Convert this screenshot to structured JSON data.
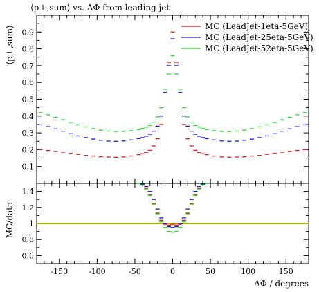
{
  "chart_data": [
    {
      "type": "scatter",
      "title": "⟨p⊥,sum⟩ vs. ΔΦ from leading jet",
      "xlabel": "",
      "ylabel": "⟨p⊥,sum⟩",
      "xlim": [
        -180,
        180
      ],
      "ylim": [
        0,
        1.0
      ],
      "yticks": [
        "0.1",
        "0.2",
        "0.3",
        "0.4",
        "0.5",
        "0.6",
        "0.7",
        "0.8",
        "0.9"
      ],
      "legend_position": "top-right",
      "x": [
        -175,
        -165,
        -155,
        -145,
        -135,
        -125,
        -115,
        -105,
        -95,
        -85,
        -75,
        -65,
        -55,
        -45,
        -40,
        -35,
        -30,
        -25,
        -20,
        -15,
        -10,
        -5,
        0,
        5,
        10,
        15,
        20,
        25,
        30,
        35,
        40,
        45,
        55,
        65,
        75,
        85,
        95,
        105,
        115,
        125,
        135,
        145,
        155,
        165,
        175
      ],
      "series": [
        {
          "name": "MC (LeadJet-1eta-5GeV)",
          "color": "#e41a1c",
          "values": [
            0.2,
            0.195,
            0.19,
            0.185,
            0.178,
            0.172,
            0.166,
            0.162,
            0.158,
            0.156,
            0.155,
            0.157,
            0.162,
            0.17,
            0.176,
            0.184,
            0.196,
            0.222,
            0.265,
            0.35,
            0.54,
            0.72,
            0.9,
            0.72,
            0.54,
            0.35,
            0.265,
            0.222,
            0.196,
            0.184,
            0.176,
            0.17,
            0.162,
            0.157,
            0.155,
            0.156,
            0.158,
            0.162,
            0.166,
            0.172,
            0.178,
            0.185,
            0.19,
            0.195,
            0.2
          ]
        },
        {
          "name": "MC (LeadJet-25eta-5GeV)",
          "color": "#1a1aee",
          "values": [
            0.348,
            0.337,
            0.324,
            0.31,
            0.295,
            0.282,
            0.272,
            0.263,
            0.256,
            0.251,
            0.25,
            0.252,
            0.258,
            0.266,
            0.272,
            0.28,
            0.292,
            0.31,
            0.34,
            0.4,
            0.54,
            0.7,
            0.86,
            0.7,
            0.54,
            0.4,
            0.34,
            0.31,
            0.292,
            0.28,
            0.272,
            0.266,
            0.258,
            0.252,
            0.25,
            0.251,
            0.256,
            0.263,
            0.272,
            0.282,
            0.295,
            0.31,
            0.324,
            0.337,
            0.348
          ]
        },
        {
          "name": "MC (LeadJet-52eta-5GeV)",
          "color": "#22dd22",
          "values": [
            0.42,
            0.408,
            0.393,
            0.378,
            0.362,
            0.348,
            0.335,
            0.325,
            0.316,
            0.311,
            0.308,
            0.309,
            0.313,
            0.32,
            0.326,
            0.334,
            0.344,
            0.364,
            0.395,
            0.45,
            0.56,
            0.65,
            0.76,
            0.65,
            0.56,
            0.45,
            0.395,
            0.364,
            0.344,
            0.334,
            0.326,
            0.32,
            0.313,
            0.309,
            0.308,
            0.311,
            0.316,
            0.325,
            0.335,
            0.348,
            0.362,
            0.378,
            0.393,
            0.408,
            0.42
          ]
        }
      ]
    },
    {
      "type": "scatter",
      "title": "",
      "xlabel": "ΔΦ / degrees",
      "ylabel": "MC/data",
      "xlim": [
        -180,
        180
      ],
      "ylim": [
        0.5,
        1.5
      ],
      "yticks": [
        "0.6",
        "0.8",
        "1",
        "1.2",
        "1.4"
      ],
      "xticks": [
        "-150",
        "-100",
        "-50",
        "0",
        "50",
        "100",
        "150"
      ],
      "reference_line": {
        "y": 1.0,
        "color": "#aaaa00"
      },
      "x": [
        -45,
        -40,
        -35,
        -30,
        -25,
        -20,
        -15,
        -10,
        -5,
        0,
        5,
        10,
        15,
        20,
        25,
        30,
        35,
        40,
        45
      ],
      "series": [
        {
          "name": "MC (LeadJet-1eta-5GeV)",
          "color": "#e41a1c",
          "values": [
            1.5,
            1.49,
            1.44,
            1.36,
            1.25,
            1.13,
            1.04,
            0.99,
            0.98,
            0.99,
            0.98,
            0.99,
            1.04,
            1.13,
            1.25,
            1.36,
            1.44,
            1.49,
            1.5
          ]
        },
        {
          "name": "MC (LeadJet-25eta-5GeV)",
          "color": "#1a1aee",
          "values": [
            1.5,
            1.49,
            1.46,
            1.4,
            1.3,
            1.18,
            1.07,
            1.0,
            0.96,
            0.95,
            0.96,
            1.0,
            1.07,
            1.18,
            1.3,
            1.4,
            1.46,
            1.49,
            1.5
          ]
        },
        {
          "name": "MC (LeadJet-52eta-5GeV)",
          "color": "#22dd22",
          "values": [
            1.5,
            1.48,
            1.43,
            1.35,
            1.24,
            1.12,
            1.02,
            0.95,
            0.9,
            0.89,
            0.9,
            0.95,
            1.02,
            1.12,
            1.24,
            1.35,
            1.43,
            1.48,
            1.5
          ]
        }
      ]
    }
  ]
}
